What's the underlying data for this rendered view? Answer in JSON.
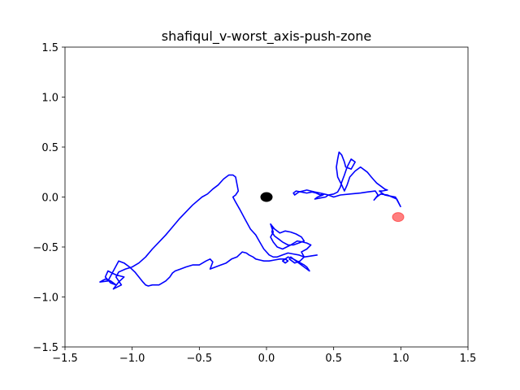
{
  "chart_data": {
    "type": "line",
    "title": "shafiqul_v-worst_axis-push-zone",
    "xlabel": "",
    "ylabel": "",
    "xlim": [
      -1.5,
      1.5
    ],
    "ylim": [
      -1.5,
      1.5
    ],
    "xticks": [
      -1.5,
      -1.0,
      -0.5,
      0.0,
      0.5,
      1.0,
      1.5
    ],
    "yticks": [
      -1.5,
      -1.0,
      -0.5,
      0.0,
      0.5,
      1.0,
      1.5
    ],
    "xtick_labels": [
      "−1.5",
      "−1.0",
      "−0.5",
      "0.0",
      "0.5",
      "1.0",
      "1.5"
    ],
    "ytick_labels": [
      "−1.5",
      "−1.0",
      "−0.5",
      "0.0",
      "0.5",
      "1.0",
      "1.5"
    ],
    "grid": false,
    "series": [
      {
        "color": "#0000ff",
        "x": [
          1.0,
          0.97,
          0.9,
          0.85,
          0.82,
          0.8,
          0.83,
          0.81,
          0.75,
          0.7,
          0.62,
          0.55,
          0.5,
          0.46,
          0.43,
          0.4,
          0.37,
          0.34,
          0.3,
          0.26,
          0.22,
          0.2,
          0.21,
          0.24,
          0.27,
          0.3,
          0.33,
          0.36,
          0.4,
          0.43,
          0.42,
          0.38,
          0.36,
          0.4,
          0.44,
          0.46,
          0.5,
          0.53,
          0.55,
          0.56,
          0.58,
          0.6,
          0.63,
          0.66,
          0.63,
          0.59,
          0.58,
          0.56,
          0.54,
          0.53,
          0.52,
          0.53,
          0.56,
          0.58,
          0.6,
          0.62,
          0.66,
          0.7,
          0.75,
          0.78,
          0.8,
          0.82,
          0.86,
          0.88,
          0.9,
          0.86,
          0.84,
          0.88,
          0.92,
          0.96,
          1.0
        ],
        "y": [
          -0.1,
          -0.02,
          0.02,
          0.03,
          0.0,
          -0.03,
          0.02,
          0.06,
          0.05,
          0.04,
          0.03,
          0.02,
          0.0,
          0.02,
          0.03,
          0.02,
          0.04,
          0.05,
          0.04,
          0.05,
          0.06,
          0.04,
          0.02,
          0.05,
          0.06,
          0.07,
          0.06,
          0.05,
          0.04,
          0.03,
          0.02,
          0.0,
          -0.02,
          -0.01,
          0.0,
          0.02,
          0.03,
          0.05,
          0.1,
          0.15,
          0.22,
          0.3,
          0.38,
          0.35,
          0.28,
          0.3,
          0.35,
          0.42,
          0.45,
          0.38,
          0.3,
          0.2,
          0.12,
          0.06,
          0.12,
          0.2,
          0.26,
          0.3,
          0.25,
          0.2,
          0.17,
          0.14,
          0.1,
          0.08,
          0.07,
          0.06,
          0.06,
          0.02,
          0.01,
          0.0,
          -0.1
        ]
      },
      {
        "color": "#0000ff",
        "x": [
          0.38,
          0.33,
          0.28,
          0.24,
          0.2,
          0.16,
          0.12,
          0.08,
          0.05,
          0.02,
          0.0,
          -0.02,
          -0.05,
          -0.08,
          -0.12,
          -0.16,
          -0.2,
          -0.23,
          -0.25,
          -0.23,
          -0.21,
          -0.23,
          -0.25,
          -0.28,
          -0.32,
          -0.36,
          -0.4,
          -0.44,
          -0.48,
          -0.55,
          -0.6,
          -0.65,
          -0.7,
          -0.75,
          -0.8,
          -0.85,
          -0.9,
          -0.95,
          -1.0,
          -1.05,
          -1.1,
          -1.12,
          -1.08,
          -1.14,
          -1.1,
          -1.06,
          -1.12,
          -1.18,
          -1.2,
          -1.16,
          -1.12,
          -1.16,
          -1.2,
          -1.24,
          -1.18,
          -1.1,
          -1.06,
          -1.02,
          -0.98,
          -0.95,
          -0.92,
          -0.9,
          -0.88,
          -0.85,
          -0.8,
          -0.75,
          -0.72,
          -0.7,
          -0.68,
          -0.64,
          -0.6,
          -0.55,
          -0.5,
          -0.45,
          -0.42,
          -0.4,
          -0.42,
          -0.38,
          -0.34,
          -0.3,
          -0.26,
          -0.22,
          -0.18,
          -0.15,
          -0.13,
          -0.1,
          -0.08,
          -0.05,
          -0.02,
          0.02,
          0.06,
          0.1,
          0.14,
          0.16,
          0.14,
          0.12,
          0.16,
          0.2,
          0.24,
          0.28,
          0.3,
          0.32,
          0.28,
          0.24,
          0.2,
          0.18,
          0.17,
          0.21,
          0.25,
          0.28,
          0.26,
          0.3,
          0.33,
          0.3,
          0.27,
          0.23,
          0.18,
          0.12,
          0.08,
          0.05,
          0.03,
          0.05,
          0.03,
          0.06,
          0.1,
          0.14,
          0.18,
          0.22,
          0.26,
          0.28,
          0.24,
          0.2,
          0.16,
          0.12,
          0.09,
          0.06,
          0.04,
          0.05
        ],
        "y": [
          -0.58,
          -0.59,
          -0.6,
          -0.58,
          -0.57,
          -0.56,
          -0.58,
          -0.6,
          -0.6,
          -0.58,
          -0.55,
          -0.52,
          -0.45,
          -0.38,
          -0.32,
          -0.22,
          -0.12,
          -0.05,
          0.0,
          0.02,
          0.06,
          0.2,
          0.22,
          0.22,
          0.18,
          0.12,
          0.08,
          0.03,
          0.0,
          -0.08,
          -0.15,
          -0.22,
          -0.3,
          -0.38,
          -0.45,
          -0.52,
          -0.6,
          -0.66,
          -0.7,
          -0.72,
          -0.75,
          -0.8,
          -0.88,
          -0.92,
          -0.85,
          -0.8,
          -0.78,
          -0.74,
          -0.8,
          -0.86,
          -0.88,
          -0.84,
          -0.82,
          -0.85,
          -0.84,
          -0.64,
          -0.66,
          -0.7,
          -0.75,
          -0.8,
          -0.85,
          -0.88,
          -0.89,
          -0.88,
          -0.88,
          -0.84,
          -0.8,
          -0.76,
          -0.74,
          -0.72,
          -0.7,
          -0.68,
          -0.68,
          -0.64,
          -0.62,
          -0.65,
          -0.72,
          -0.7,
          -0.68,
          -0.66,
          -0.62,
          -0.6,
          -0.55,
          -0.56,
          -0.58,
          -0.6,
          -0.62,
          -0.63,
          -0.64,
          -0.64,
          -0.63,
          -0.62,
          -0.62,
          -0.64,
          -0.66,
          -0.64,
          -0.6,
          -0.62,
          -0.65,
          -0.68,
          -0.7,
          -0.74,
          -0.7,
          -0.66,
          -0.62,
          -0.6,
          -0.62,
          -0.66,
          -0.64,
          -0.6,
          -0.55,
          -0.52,
          -0.48,
          -0.46,
          -0.45,
          -0.44,
          -0.48,
          -0.52,
          -0.5,
          -0.45,
          -0.4,
          -0.35,
          -0.27,
          -0.32,
          -0.36,
          -0.34,
          -0.35,
          -0.37,
          -0.4,
          -0.44,
          -0.46,
          -0.48,
          -0.48,
          -0.45,
          -0.42,
          -0.39,
          -0.35,
          -0.3
        ]
      }
    ],
    "markers": [
      {
        "x": 0.0,
        "y": 0.0,
        "color": "#000000",
        "opacity": 1.0
      },
      {
        "x": 0.98,
        "y": -0.2,
        "color": "#ff0000",
        "opacity": 0.5
      }
    ]
  }
}
